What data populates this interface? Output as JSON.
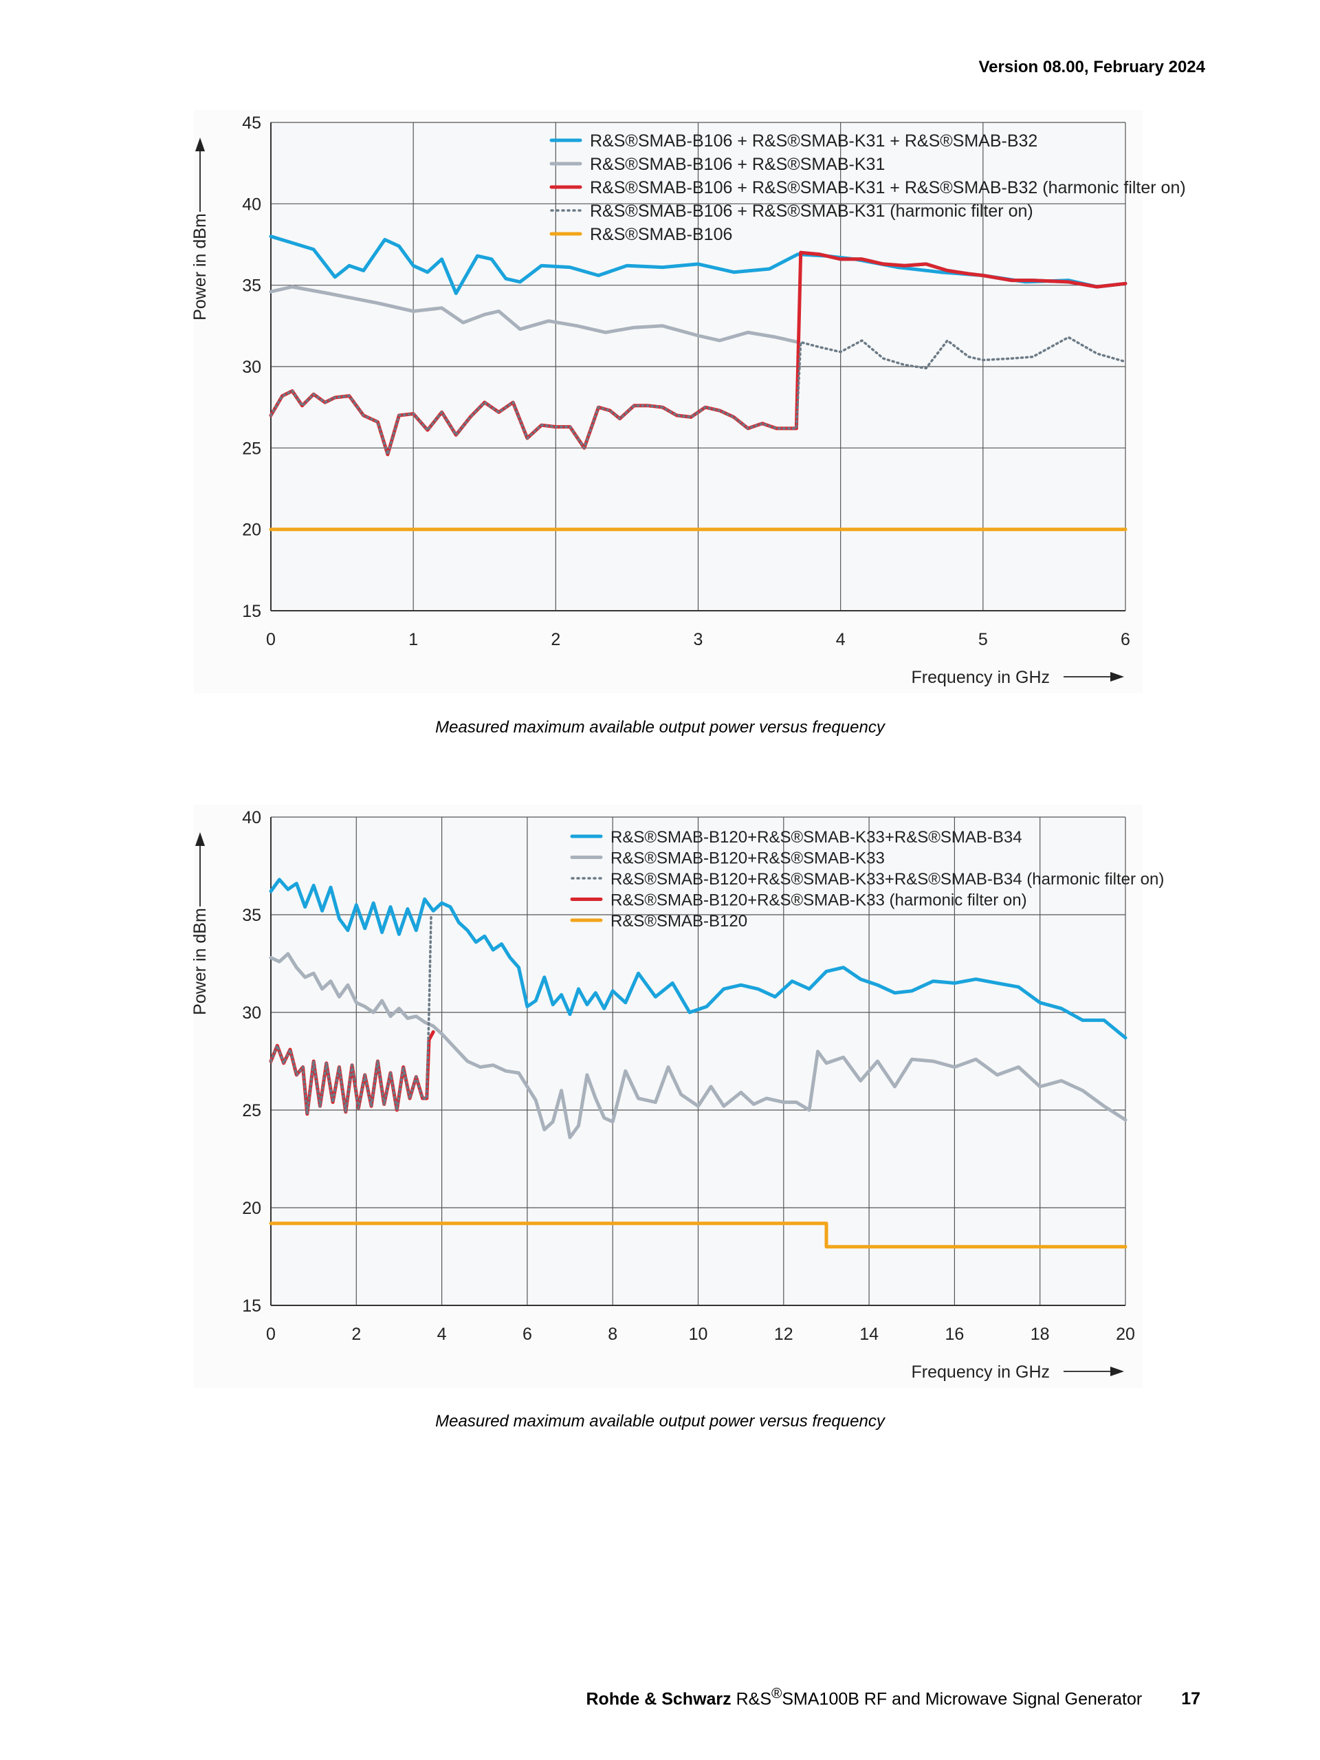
{
  "header": {
    "version": "Version 08.00, February 2024"
  },
  "colors": {
    "blue": "#1aa3dc",
    "gray": "#a8b1bb",
    "red": "#d8262f",
    "dotted": "#6b7a86",
    "orange": "#f2a51a",
    "grid": "#555555",
    "plot_bg": "#f7f8f9"
  },
  "captions": [
    "Measured maximum available output power versus frequency",
    "Measured maximum available output power versus frequency"
  ],
  "footer": {
    "brand": "Rohde & Schwarz",
    "product_prefix": "R&S",
    "product_sup": "®",
    "product_name": "SMA100B RF and Microwave Signal Generator",
    "page_number": "17"
  },
  "chart_data": [
    {
      "type": "line",
      "ylabel": "Power in dBm",
      "xlabel": "Frequency in GHz",
      "xlim": [
        0,
        6
      ],
      "ylim": [
        15,
        45
      ],
      "xticks": [
        "0",
        "1",
        "2",
        "3",
        "4",
        "5",
        "6"
      ],
      "yticks": [
        "15",
        "20",
        "25",
        "30",
        "35",
        "40",
        "45"
      ],
      "legend_position": "top-right",
      "series": [
        {
          "name": "R&S®SMAB-B106 + R&S®SMAB-K31 + R&S®SMAB-B32",
          "color": "blue",
          "style": "solid",
          "x": [
            0,
            0.15,
            0.3,
            0.45,
            0.55,
            0.65,
            0.8,
            0.9,
            1.0,
            1.1,
            1.2,
            1.3,
            1.45,
            1.55,
            1.65,
            1.75,
            1.9,
            2.1,
            2.3,
            2.5,
            2.75,
            3.0,
            3.25,
            3.5,
            3.7,
            3.9,
            4.1,
            4.4,
            4.7,
            5.0,
            5.3,
            5.6,
            5.8,
            6.0
          ],
          "y": [
            38.0,
            37.6,
            37.2,
            35.5,
            36.2,
            35.9,
            37.8,
            37.4,
            36.2,
            35.8,
            36.6,
            34.5,
            36.8,
            36.6,
            35.4,
            35.2,
            36.2,
            36.1,
            35.6,
            36.2,
            36.1,
            36.3,
            35.8,
            36.0,
            36.9,
            36.8,
            36.6,
            36.1,
            35.8,
            35.6,
            35.2,
            35.3,
            34.9,
            35.1
          ]
        },
        {
          "name": "R&S®SMAB-B106 + R&S®SMAB-K31",
          "color": "gray",
          "style": "solid",
          "x": [
            0,
            0.15,
            0.4,
            0.75,
            1.0,
            1.2,
            1.35,
            1.5,
            1.6,
            1.75,
            1.95,
            2.15,
            2.35,
            2.55,
            2.75,
            3.0,
            3.15,
            3.35,
            3.55,
            3.7
          ],
          "y": [
            34.6,
            34.9,
            34.5,
            33.9,
            33.4,
            33.6,
            32.7,
            33.2,
            33.4,
            32.3,
            32.8,
            32.5,
            32.1,
            32.4,
            32.5,
            31.9,
            31.6,
            32.1,
            31.8,
            31.5
          ]
        },
        {
          "name": "R&S®SMAB-B106 + R&S®SMAB-K31 + R&S®SMAB-B32 (harmonic filter on)",
          "color": "red",
          "style": "solid",
          "x": [
            0,
            0.08,
            0.15,
            0.22,
            0.3,
            0.38,
            0.45,
            0.55,
            0.65,
            0.75,
            0.82,
            0.9,
            1.0,
            1.1,
            1.2,
            1.3,
            1.4,
            1.5,
            1.6,
            1.7,
            1.8,
            1.9,
            2.0,
            2.1,
            2.2,
            2.3,
            2.38,
            2.45,
            2.55,
            2.65,
            2.75,
            2.85,
            2.95,
            3.05,
            3.15,
            3.25,
            3.35,
            3.45,
            3.55,
            3.65,
            3.69,
            3.72
          ],
          "y": [
            27.0,
            28.2,
            28.5,
            27.6,
            28.3,
            27.8,
            28.1,
            28.2,
            27.0,
            26.6,
            24.6,
            27.0,
            27.1,
            26.1,
            27.2,
            25.8,
            26.9,
            27.8,
            27.2,
            27.8,
            25.6,
            26.4,
            26.3,
            26.3,
            25.0,
            27.5,
            27.3,
            26.8,
            27.6,
            27.6,
            27.5,
            27.0,
            26.9,
            27.5,
            27.3,
            26.9,
            26.2,
            26.5,
            26.2,
            26.2,
            26.2,
            37.0
          ]
        },
        {
          "name": "R&S®SMAB-B106 + R&S®SMAB-K31 (harmonic filter on)",
          "color": "dotted",
          "style": "dotted",
          "x": [
            0,
            0.08,
            0.15,
            0.22,
            0.3,
            0.38,
            0.45,
            0.55,
            0.65,
            0.75,
            0.82,
            0.9,
            1.0,
            1.1,
            1.2,
            1.3,
            1.4,
            1.5,
            1.6,
            1.7,
            1.8,
            1.9,
            2.0,
            2.1,
            2.2,
            2.3,
            2.38,
            2.45,
            2.55,
            2.65,
            2.75,
            2.85,
            2.95,
            3.05,
            3.15,
            3.25,
            3.35,
            3.45,
            3.55,
            3.65,
            3.69,
            3.72,
            3.85,
            4.0,
            4.15,
            4.3,
            4.45,
            4.6,
            4.75,
            4.9,
            5.0,
            5.2,
            5.35,
            5.6,
            5.8,
            6.0
          ],
          "y": [
            27.0,
            28.2,
            28.5,
            27.6,
            28.3,
            27.8,
            28.1,
            28.2,
            27.0,
            26.6,
            24.6,
            27.0,
            27.1,
            26.1,
            27.2,
            25.8,
            26.9,
            27.8,
            27.2,
            27.8,
            25.6,
            26.4,
            26.3,
            26.3,
            25.0,
            27.5,
            27.3,
            26.8,
            27.6,
            27.6,
            27.5,
            27.0,
            26.9,
            27.5,
            27.3,
            26.9,
            26.2,
            26.5,
            26.2,
            26.2,
            26.2,
            31.5,
            31.2,
            30.9,
            31.6,
            30.5,
            30.1,
            29.9,
            31.6,
            30.6,
            30.4,
            30.5,
            30.6,
            31.8,
            30.8,
            30.3
          ]
        },
        {
          "name": "R&S®SMAB-B106",
          "color": "orange",
          "style": "solid",
          "x": [
            0,
            6
          ],
          "y": [
            20.0,
            20.0
          ]
        },
        {
          "name": "",
          "color": "blue",
          "style": "solid",
          "x": [
            3.72,
            3.85,
            4.0,
            4.15,
            4.3,
            4.45,
            4.6,
            4.75,
            4.9,
            5.0,
            5.2,
            5.35,
            5.6,
            5.8,
            6.0
          ],
          "y": [
            37.0,
            36.9,
            36.6,
            36.6,
            36.3,
            36.2,
            36.3,
            35.9,
            35.7,
            35.6,
            35.3,
            35.3,
            35.2,
            34.9,
            35.1
          ]
        },
        {
          "name": "",
          "color": "red",
          "style": "solid",
          "x": [
            3.72,
            3.85,
            4.0,
            4.15,
            4.3,
            4.45,
            4.6,
            4.75,
            4.9,
            5.0,
            5.2,
            5.35,
            5.6,
            5.8,
            6.0
          ],
          "y": [
            37.0,
            36.9,
            36.6,
            36.6,
            36.3,
            36.2,
            36.3,
            35.9,
            35.7,
            35.6,
            35.3,
            35.3,
            35.2,
            34.9,
            35.1
          ]
        }
      ]
    },
    {
      "type": "line",
      "ylabel": "Power in dBm",
      "xlabel": "Frequency in GHz",
      "xlim": [
        0,
        20
      ],
      "ylim": [
        15,
        40
      ],
      "xticks": [
        "0",
        "2",
        "4",
        "6",
        "8",
        "10",
        "12",
        "14",
        "16",
        "18",
        "20"
      ],
      "yticks": [
        "15",
        "20",
        "25",
        "30",
        "35",
        "40"
      ],
      "legend_position": "top-right",
      "series": [
        {
          "name": "R&S®SMAB-B120+R&S®SMAB-K33+R&S®SMAB-B34",
          "color": "blue",
          "style": "solid",
          "x": [
            0,
            0.2,
            0.4,
            0.6,
            0.8,
            1.0,
            1.2,
            1.4,
            1.6,
            1.8,
            2.0,
            2.2,
            2.4,
            2.6,
            2.8,
            3.0,
            3.2,
            3.4,
            3.6,
            3.8,
            4.0,
            4.2,
            4.4,
            4.6,
            4.8,
            5.0,
            5.2,
            5.4,
            5.6,
            5.8,
            6.0,
            6.2,
            6.4,
            6.6,
            6.8,
            7.0,
            7.2,
            7.4,
            7.6,
            7.8,
            8.0,
            8.3,
            8.6,
            9.0,
            9.4,
            9.8,
            10.2,
            10.6,
            11.0,
            11.4,
            11.8,
            12.2,
            12.6,
            13.0,
            13.4,
            13.8,
            14.2,
            14.6,
            15.0,
            15.5,
            16.0,
            16.5,
            17.0,
            17.5,
            18.0,
            18.5,
            19.0,
            19.5,
            20.0
          ],
          "y": [
            36.2,
            36.8,
            36.3,
            36.6,
            35.4,
            36.5,
            35.2,
            36.4,
            34.8,
            34.2,
            35.5,
            34.3,
            35.6,
            34.1,
            35.4,
            34.0,
            35.3,
            34.2,
            35.8,
            35.2,
            35.6,
            35.4,
            34.6,
            34.2,
            33.6,
            33.9,
            33.2,
            33.5,
            32.8,
            32.3,
            30.3,
            30.6,
            31.8,
            30.4,
            30.9,
            29.9,
            31.2,
            30.4,
            31.0,
            30.2,
            31.1,
            30.5,
            32.0,
            30.8,
            31.5,
            30.0,
            30.3,
            31.2,
            31.4,
            31.2,
            30.8,
            31.6,
            31.2,
            32.1,
            32.3,
            31.7,
            31.4,
            31.0,
            31.1,
            31.6,
            31.5,
            31.7,
            31.5,
            31.3,
            30.5,
            30.2,
            29.6,
            29.6,
            28.7
          ]
        },
        {
          "name": "R&S®SMAB-B120+R&S®SMAB-K33",
          "color": "gray",
          "style": "solid",
          "x": [
            0,
            0.2,
            0.4,
            0.6,
            0.8,
            1.0,
            1.2,
            1.4,
            1.6,
            1.8,
            2.0,
            2.2,
            2.4,
            2.6,
            2.8,
            3.0,
            3.2,
            3.4,
            3.6,
            3.8,
            4.0,
            4.3,
            4.6,
            4.9,
            5.2,
            5.5,
            5.8,
            6.0,
            6.2,
            6.4,
            6.6,
            6.8,
            7.0,
            7.2,
            7.4,
            7.6,
            7.8,
            8.0,
            8.3,
            8.6,
            9.0,
            9.3,
            9.6,
            10.0,
            10.3,
            10.6,
            11.0,
            11.3,
            11.6,
            12.0,
            12.3,
            12.6,
            12.8,
            13.0,
            13.4,
            13.8,
            14.2,
            14.6,
            15.0,
            15.5,
            16.0,
            16.5,
            17.0,
            17.5,
            18.0,
            18.5,
            19.0,
            19.5,
            20.0
          ],
          "y": [
            32.8,
            32.6,
            33.0,
            32.3,
            31.8,
            32.0,
            31.2,
            31.6,
            30.8,
            31.4,
            30.5,
            30.3,
            30.0,
            30.6,
            29.8,
            30.2,
            29.7,
            29.8,
            29.5,
            29.3,
            28.9,
            28.2,
            27.5,
            27.2,
            27.3,
            27.0,
            26.9,
            26.2,
            25.5,
            24.0,
            24.4,
            26.0,
            23.6,
            24.2,
            26.8,
            25.6,
            24.6,
            24.4,
            27.0,
            25.6,
            25.4,
            27.2,
            25.8,
            25.2,
            26.2,
            25.2,
            25.9,
            25.3,
            25.6,
            25.4,
            25.4,
            25.0,
            28.0,
            27.4,
            27.7,
            26.5,
            27.5,
            26.2,
            27.6,
            27.5,
            27.2,
            27.6,
            26.8,
            27.2,
            26.2,
            26.5,
            26.0,
            25.2,
            24.5
          ]
        },
        {
          "name": "R&S®SMAB-B120+R&S®SMAB-K33+R&S®SMAB-B34 (harmonic filter on)",
          "color": "dotted",
          "style": "dotted",
          "x": [
            0,
            0.15,
            0.3,
            0.45,
            0.6,
            0.75,
            0.85,
            1.0,
            1.15,
            1.3,
            1.45,
            1.6,
            1.75,
            1.9,
            2.05,
            2.2,
            2.35,
            2.5,
            2.65,
            2.8,
            2.95,
            3.1,
            3.25,
            3.4,
            3.55,
            3.65,
            3.7,
            3.75
          ],
          "y": [
            27.5,
            28.3,
            27.4,
            28.1,
            26.8,
            27.2,
            24.8,
            27.5,
            25.2,
            27.4,
            25.4,
            27.2,
            24.9,
            27.3,
            25.1,
            26.8,
            25.2,
            27.5,
            25.3,
            26.9,
            25.0,
            27.2,
            25.6,
            26.7,
            25.6,
            25.6,
            30.0,
            35.0
          ]
        },
        {
          "name": "R&S®SMAB-B120+R&S®SMAB-K33 (harmonic filter on)",
          "color": "red",
          "style": "solid",
          "x": [
            0,
            0.15,
            0.3,
            0.45,
            0.6,
            0.75,
            0.85,
            1.0,
            1.15,
            1.3,
            1.45,
            1.6,
            1.75,
            1.9,
            2.05,
            2.2,
            2.35,
            2.5,
            2.65,
            2.8,
            2.95,
            3.1,
            3.25,
            3.4,
            3.55,
            3.65,
            3.7,
            3.8
          ],
          "y": [
            27.5,
            28.3,
            27.4,
            28.1,
            26.8,
            27.2,
            24.8,
            27.5,
            25.2,
            27.4,
            25.4,
            27.2,
            24.9,
            27.3,
            25.1,
            26.8,
            25.2,
            27.5,
            25.3,
            26.9,
            25.0,
            27.2,
            25.6,
            26.7,
            25.6,
            25.6,
            28.6,
            29.0
          ]
        },
        {
          "name": "R&S®SMAB-B120",
          "color": "orange",
          "style": "solid",
          "x": [
            0,
            13.0,
            13.0,
            20.0
          ],
          "y": [
            19.2,
            19.2,
            18.0,
            18.0
          ]
        }
      ]
    }
  ]
}
